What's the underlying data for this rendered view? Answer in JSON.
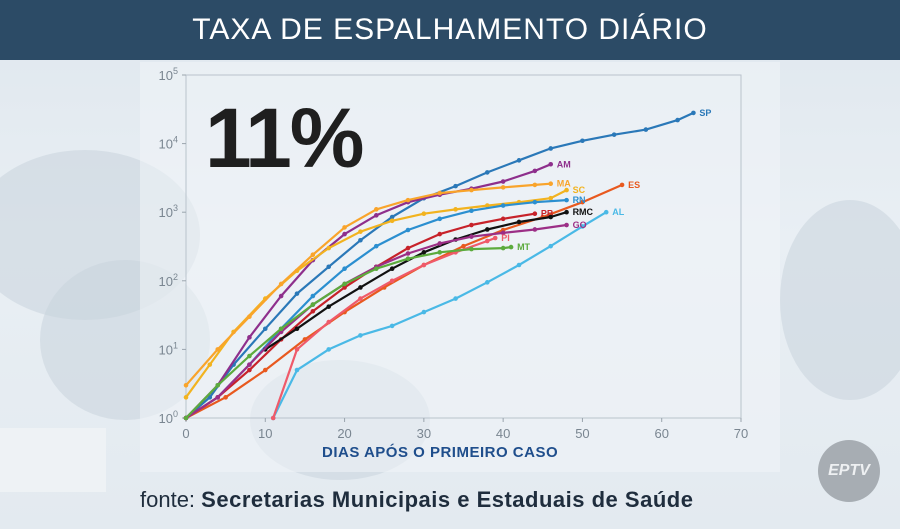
{
  "header": {
    "title": "TAXA DE ESPALHAMENTO DIÁRIO"
  },
  "highlight": "11%",
  "footer": {
    "prefix": "fonte:",
    "source": "Secretarias Municipais e Estaduais de Saúde"
  },
  "logo": {
    "text": "EPTV"
  },
  "chart_data": {
    "type": "line",
    "title": "",
    "xlabel": "DIAS APÓS O PRIMEIRO CASO",
    "ylabel": "",
    "xlim": [
      0,
      70
    ],
    "ylim_log10": [
      0,
      5
    ],
    "y_scale": "log",
    "x_ticks": [
      0,
      10,
      20,
      30,
      40,
      50,
      60,
      70
    ],
    "y_ticks": [
      "10^0",
      "10^1",
      "10^2",
      "10^3",
      "10^4",
      "10^5"
    ],
    "series": [
      {
        "name": "SP",
        "color": "#2a78b8",
        "x": [
          0,
          3,
          6,
          10,
          14,
          18,
          22,
          26,
          30,
          34,
          38,
          42,
          46,
          50,
          54,
          58,
          62,
          64
        ],
        "y": [
          1,
          2,
          6,
          20,
          65,
          160,
          390,
          850,
          1600,
          2400,
          3800,
          5700,
          8500,
          11000,
          13500,
          16000,
          22000,
          28000
        ]
      },
      {
        "name": "AM",
        "color": "#8e2f8c",
        "x": [
          0,
          4,
          8,
          12,
          16,
          20,
          24,
          28,
          32,
          36,
          40,
          44,
          46
        ],
        "y": [
          1,
          3,
          15,
          60,
          200,
          480,
          900,
          1400,
          1800,
          2200,
          2800,
          4000,
          5000
        ]
      },
      {
        "name": "ES",
        "color": "#e8591f",
        "x": [
          0,
          5,
          10,
          15,
          20,
          25,
          30,
          35,
          40,
          45,
          50,
          55
        ],
        "y": [
          1,
          2,
          5,
          14,
          35,
          80,
          170,
          320,
          550,
          850,
          1400,
          2500
        ]
      },
      {
        "name": "SC",
        "color": "#f2b31f",
        "x": [
          0,
          3,
          6,
          10,
          14,
          18,
          22,
          26,
          30,
          34,
          38,
          42,
          46,
          48
        ],
        "y": [
          2,
          6,
          18,
          55,
          140,
          300,
          520,
          750,
          950,
          1100,
          1250,
          1400,
          1600,
          2100
        ]
      },
      {
        "name": "MA",
        "color": "#f9a42b",
        "x": [
          0,
          4,
          8,
          12,
          16,
          20,
          24,
          28,
          32,
          36,
          40,
          44,
          46
        ],
        "y": [
          3,
          10,
          30,
          90,
          240,
          600,
          1100,
          1500,
          1900,
          2100,
          2300,
          2500,
          2600
        ]
      },
      {
        "name": "RN",
        "color": "#2b8fd0",
        "x": [
          0,
          4,
          8,
          12,
          16,
          20,
          24,
          28,
          32,
          36,
          40,
          44,
          48
        ],
        "y": [
          1,
          2,
          6,
          20,
          60,
          150,
          320,
          550,
          800,
          1050,
          1250,
          1400,
          1500
        ]
      },
      {
        "name": "PB",
        "color": "#c7222a",
        "x": [
          0,
          4,
          8,
          12,
          16,
          20,
          24,
          28,
          32,
          36,
          40,
          44
        ],
        "y": [
          1,
          2,
          5,
          14,
          36,
          80,
          160,
          300,
          480,
          650,
          800,
          950
        ]
      },
      {
        "name": "RMC",
        "color": "#111111",
        "x": [
          10,
          14,
          18,
          22,
          26,
          30,
          34,
          38,
          42,
          46,
          48
        ],
        "y": [
          10,
          20,
          42,
          80,
          150,
          260,
          400,
          560,
          720,
          850,
          1000
        ]
      },
      {
        "name": "AL",
        "color": "#4ab9e6",
        "x": [
          11,
          14,
          18,
          22,
          26,
          30,
          34,
          38,
          42,
          46,
          50,
          53
        ],
        "y": [
          1,
          5,
          10,
          16,
          22,
          35,
          55,
          95,
          170,
          320,
          620,
          1000
        ]
      },
      {
        "name": "GO",
        "color": "#9c2f86",
        "x": [
          0,
          4,
          8,
          12,
          16,
          20,
          24,
          28,
          32,
          36,
          40,
          44,
          48
        ],
        "y": [
          1,
          2,
          6,
          18,
          45,
          90,
          160,
          250,
          350,
          440,
          500,
          560,
          650
        ]
      },
      {
        "name": "PI",
        "color": "#ef5a6a",
        "x": [
          11,
          14,
          18,
          22,
          26,
          30,
          34,
          38,
          39
        ],
        "y": [
          1,
          10,
          25,
          55,
          100,
          170,
          260,
          380,
          420
        ]
      },
      {
        "name": "MT",
        "color": "#5cab3d",
        "x": [
          0,
          4,
          8,
          12,
          16,
          20,
          24,
          28,
          32,
          36,
          40,
          41
        ],
        "y": [
          1,
          3,
          8,
          20,
          45,
          90,
          150,
          210,
          260,
          290,
          300,
          310
        ]
      }
    ]
  }
}
